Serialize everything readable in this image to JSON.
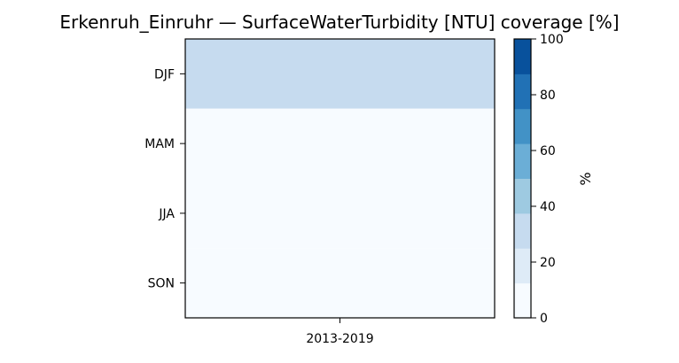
{
  "chart_data": {
    "type": "heatmap",
    "title": "Erkenruh_Einruhr — SurfaceWaterTurbidity [NTU] coverage [%]",
    "xlabel": "",
    "ylabel": "",
    "x_categories": [
      "2013-2019"
    ],
    "y_categories": [
      "DJF",
      "MAM",
      "JJA",
      "SON"
    ],
    "values": [
      [
        25
      ],
      [
        0
      ],
      [
        0
      ],
      [
        0
      ]
    ],
    "colorbar": {
      "label": "%",
      "range": [
        0,
        100
      ],
      "ticks": [
        0,
        20,
        40,
        60,
        80,
        100
      ],
      "tick_labels": [
        "0",
        "20",
        "40",
        "60",
        "80",
        "100"
      ],
      "levels": 8,
      "colors": [
        "#f7fbff",
        "#deebf7",
        "#c6dbef",
        "#9ecae1",
        "#6baed6",
        "#4292c6",
        "#2171b5",
        "#08519c"
      ]
    },
    "grid": false
  }
}
